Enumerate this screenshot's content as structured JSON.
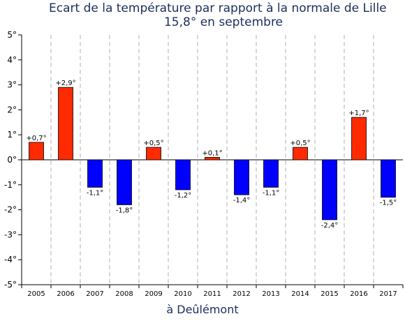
{
  "chart_data": {
    "type": "bar",
    "title": "Ecart de la température par rapport à la normale de Lille",
    "subtitle": "15,8° en septembre",
    "xlabel": "à Deûlémont",
    "ylabel": "",
    "categories": [
      "2005",
      "2006",
      "2007",
      "2008",
      "2009",
      "2010",
      "2011",
      "2012",
      "2013",
      "2014",
      "2015",
      "2016",
      "2017"
    ],
    "values": [
      0.7,
      2.9,
      -1.1,
      -1.8,
      0.5,
      -1.2,
      0.1,
      -1.4,
      -1.1,
      0.5,
      -2.4,
      1.7,
      -1.5
    ],
    "data_labels": [
      "+0,7°",
      "+2,9°",
      "-1,1°",
      "-1,8°",
      "+0,5°",
      "-1,2°",
      "+0,1°",
      "-1,4°",
      "-1,1°",
      "+0,5°",
      "-2,4°",
      "+1,7°",
      "-1,5°"
    ],
    "ylim": [
      -5,
      5
    ],
    "yticks": [
      5,
      4,
      3,
      2,
      1,
      0,
      -1,
      -2,
      -3,
      -4,
      -5
    ],
    "ytick_labels": [
      "5°",
      "4°",
      "3°",
      "2°",
      "1°",
      "0°",
      "-1°",
      "-2°",
      "-3°",
      "-4°",
      "-5°"
    ],
    "grid": "vertical dashed",
    "legend": "none",
    "colors": {
      "positive": "#ff2a00",
      "negative": "#0000ff",
      "title": "#1a2f5c",
      "grid": "#b0b0b0"
    }
  }
}
